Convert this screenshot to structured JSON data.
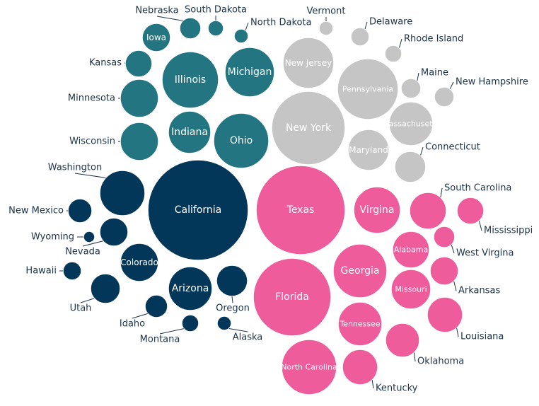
{
  "chart_data": {
    "type": "packed-bubble",
    "series": [
      {
        "name": "",
        "color": "#227581",
        "states": [
          "Iowa",
          "Nebraska",
          "South Dakota",
          "North Dakota",
          "Kansas",
          "Illinois",
          "Michigan",
          "Minnesota",
          "Indiana",
          "Ohio",
          "Wisconsin"
        ]
      },
      {
        "name": "",
        "color": "#c5c5c5",
        "states": [
          "Vermont",
          "Delaware",
          "Rhode Island",
          "New Jersey",
          "Maine",
          "New Hampshire",
          "Pennsylvania",
          "New York",
          "Massachusetts",
          "Maryland",
          "Connecticut"
        ]
      },
      {
        "name": "",
        "color": "#03375a",
        "states": [
          "Washington",
          "California",
          "New Mexico",
          "Wyoming",
          "Nevada",
          "Colorado",
          "Hawaii",
          "Arizona",
          "Utah",
          "Oregon",
          "Idaho",
          "Montana",
          "Alaska"
        ]
      },
      {
        "name": "",
        "color": "#ee5c9c",
        "states": [
          "Texas",
          "Virgina",
          "South Carolina",
          "Mississippi",
          "Alabama",
          "West Virgina",
          "Georgia",
          "Arkansas",
          "Florida",
          "Missouri",
          "Tennessee",
          "Louisiana",
          "Oklahoma",
          "North Carolina",
          "Kentucky"
        ]
      }
    ],
    "bubbles": [
      {
        "label": "Iowa",
        "group": 0,
        "value": 4,
        "label_inside": true
      },
      {
        "label": "Nebraska",
        "group": 0,
        "value": 2,
        "label_inside": false
      },
      {
        "label": "South Dakota",
        "group": 0,
        "value": 1,
        "label_inside": false
      },
      {
        "label": "North Dakota",
        "group": 0,
        "value": 1,
        "label_inside": false
      },
      {
        "label": "Kansas",
        "group": 0,
        "value": 3,
        "label_inside": false
      },
      {
        "label": "Illinois",
        "group": 0,
        "value": 13,
        "label_inside": true
      },
      {
        "label": "Michigan",
        "group": 0,
        "value": 10,
        "label_inside": true
      },
      {
        "label": "Minnesota",
        "group": 0,
        "value": 6,
        "label_inside": false
      },
      {
        "label": "Indiana",
        "group": 0,
        "value": 7,
        "label_inside": true
      },
      {
        "label": "Ohio",
        "group": 0,
        "value": 12,
        "label_inside": true
      },
      {
        "label": "Wisconsin",
        "group": 0,
        "value": 6,
        "label_inside": false
      },
      {
        "label": "Vermont",
        "group": 1,
        "value": 1,
        "label_inside": false
      },
      {
        "label": "Delaware",
        "group": 1,
        "value": 1,
        "label_inside": false
      },
      {
        "label": "Rhode Island",
        "group": 1,
        "value": 1,
        "label_inside": false
      },
      {
        "label": "New Jersey",
        "group": 1,
        "value": 9,
        "label_inside": true
      },
      {
        "label": "Maine",
        "group": 1,
        "value": 1,
        "label_inside": false
      },
      {
        "label": "New Hampshire",
        "group": 1,
        "value": 1,
        "label_inside": false
      },
      {
        "label": "Pennsylvania",
        "group": 1,
        "value": 13,
        "label_inside": true
      },
      {
        "label": "New York",
        "group": 1,
        "value": 20,
        "label_inside": true
      },
      {
        "label": "Massachusetts",
        "group": 1,
        "value": 7,
        "label_inside": true
      },
      {
        "label": "Maryland",
        "group": 1,
        "value": 6,
        "label_inside": true
      },
      {
        "label": "Connecticut",
        "group": 1,
        "value": 4,
        "label_inside": false
      },
      {
        "label": "Washington",
        "group": 2,
        "value": 8,
        "label_inside": false
      },
      {
        "label": "California",
        "group": 2,
        "value": 39,
        "label_inside": true
      },
      {
        "label": "New Mexico",
        "group": 2,
        "value": 2,
        "label_inside": false
      },
      {
        "label": "Wyoming",
        "group": 2,
        "value": 1,
        "label_inside": false
      },
      {
        "label": "Nevada",
        "group": 2,
        "value": 3,
        "label_inside": false
      },
      {
        "label": "Colorado",
        "group": 2,
        "value": 6,
        "label_inside": true
      },
      {
        "label": "Hawaii",
        "group": 2,
        "value": 1,
        "label_inside": false
      },
      {
        "label": "Arizona",
        "group": 2,
        "value": 7,
        "label_inside": true
      },
      {
        "label": "Utah",
        "group": 2,
        "value": 3,
        "label_inside": false
      },
      {
        "label": "Oregon",
        "group": 2,
        "value": 4,
        "label_inside": false
      },
      {
        "label": "Idaho",
        "group": 2,
        "value": 2,
        "label_inside": false
      },
      {
        "label": "Montana",
        "group": 2,
        "value": 1,
        "label_inside": false
      },
      {
        "label": "Alaska",
        "group": 2,
        "value": 1,
        "label_inside": false
      },
      {
        "label": "Texas",
        "group": 3,
        "value": 30,
        "label_inside": true
      },
      {
        "label": "Virgina",
        "group": 3,
        "value": 8,
        "label_inside": true
      },
      {
        "label": "South Carolina",
        "group": 3,
        "value": 5,
        "label_inside": false
      },
      {
        "label": "Mississippi",
        "group": 3,
        "value": 3,
        "label_inside": false
      },
      {
        "label": "Alabama",
        "group": 3,
        "value": 5,
        "label_inside": true
      },
      {
        "label": "West Virgina",
        "group": 3,
        "value": 2,
        "label_inside": false
      },
      {
        "label": "Georgia",
        "group": 3,
        "value": 11,
        "label_inside": true
      },
      {
        "label": "Arkansas",
        "group": 3,
        "value": 3,
        "label_inside": false
      },
      {
        "label": "Florida",
        "group": 3,
        "value": 22,
        "label_inside": true
      },
      {
        "label": "Missouri",
        "group": 3,
        "value": 6,
        "label_inside": true
      },
      {
        "label": "Tennessee",
        "group": 3,
        "value": 7,
        "label_inside": true
      },
      {
        "label": "Louisiana",
        "group": 3,
        "value": 4,
        "label_inside": false
      },
      {
        "label": "Oklahoma",
        "group": 3,
        "value": 4,
        "label_inside": false
      },
      {
        "label": "North Carolina",
        "group": 3,
        "value": 10,
        "label_inside": true
      },
      {
        "label": "Kentucky",
        "group": 3,
        "value": 4,
        "label_inside": false
      }
    ]
  }
}
